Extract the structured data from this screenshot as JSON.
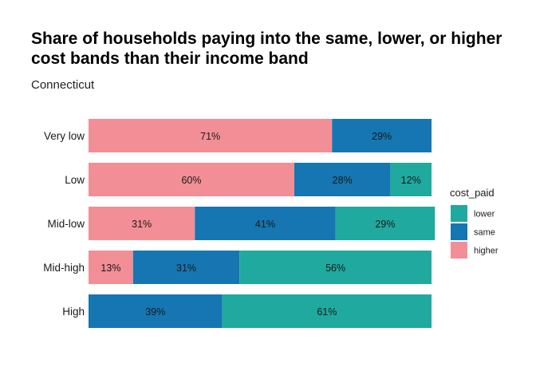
{
  "chart_data": {
    "type": "bar",
    "orientation": "horizontal",
    "stacked": true,
    "title": "Share of households paying into the same, lower, or higher cost bands than their income band",
    "subtitle": "Connecticut",
    "categories": [
      "Very low",
      "Low",
      "Mid-low",
      "Mid-high",
      "High"
    ],
    "series": [
      {
        "name": "higher",
        "color": "#F28E96",
        "values": [
          71,
          60,
          31,
          13,
          0
        ],
        "labels": [
          "71%",
          "60%",
          "31%",
          "13%",
          ""
        ]
      },
      {
        "name": "same",
        "color": "#1576B2",
        "values": [
          29,
          28,
          41,
          31,
          39
        ],
        "labels": [
          "29%",
          "28%",
          "41%",
          "31%",
          "39%"
        ]
      },
      {
        "name": "lower",
        "color": "#20A99E",
        "values": [
          0,
          12,
          29,
          56,
          61
        ],
        "labels": [
          "",
          "12%",
          "29%",
          "56%",
          "61%"
        ]
      }
    ],
    "xlim": [
      0,
      100
    ],
    "grid": false,
    "legend": {
      "title": "cost_paid",
      "position": "right",
      "entries": [
        {
          "name": "lower",
          "color": "#20A99E"
        },
        {
          "name": "same",
          "color": "#1576B2"
        },
        {
          "name": "higher",
          "color": "#F28E96"
        }
      ]
    }
  }
}
